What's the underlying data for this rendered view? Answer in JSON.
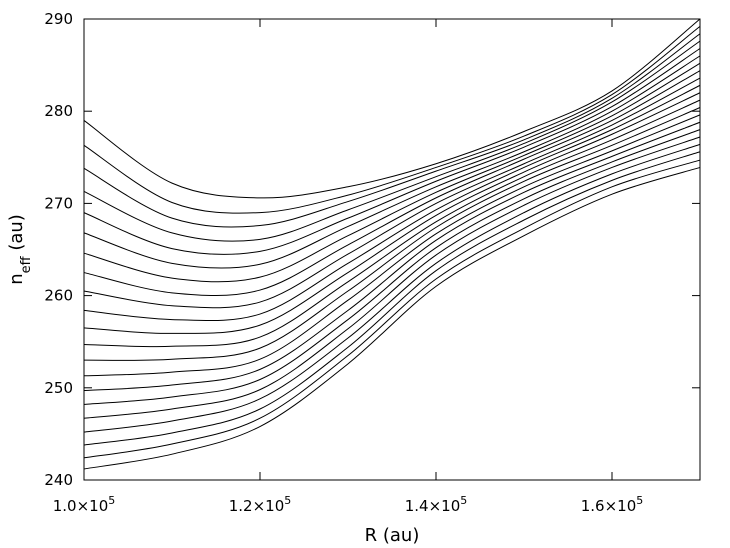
{
  "chart_data": {
    "type": "line",
    "title": "",
    "xlabel": "R (au)",
    "ylabel_main": "n",
    "ylabel_sub": "eff",
    "ylabel_unit": " (au)",
    "xlim": [
      100000,
      170000
    ],
    "ylim": [
      240,
      290
    ],
    "xticks": [
      {
        "value": 100000,
        "mantissa": "1.0",
        "base": "×10",
        "exp": "5"
      },
      {
        "value": 120000,
        "mantissa": "1.2",
        "base": "×10",
        "exp": "5"
      },
      {
        "value": 140000,
        "mantissa": "1.4",
        "base": "×10",
        "exp": "5"
      },
      {
        "value": 160000,
        "mantissa": "1.6",
        "base": "×10",
        "exp": "5"
      }
    ],
    "yticks": [
      {
        "value": 240,
        "label": "240"
      },
      {
        "value": 250,
        "label": "250"
      },
      {
        "value": 260,
        "label": "260"
      },
      {
        "value": 270,
        "label": "270"
      },
      {
        "value": 280,
        "label": "280"
      },
      {
        "value": 290,
        "label": "290"
      }
    ],
    "grid": false,
    "line_color": "#000000",
    "x": [
      100000,
      110000,
      120000,
      130000,
      140000,
      150000,
      160000,
      170000
    ],
    "series": [
      {
        "values": [
          279.0,
          272.2,
          270.6,
          271.8,
          274.3,
          277.8,
          282.2,
          290.0
        ]
      },
      {
        "values": [
          276.3,
          270.1,
          269.0,
          270.9,
          273.9,
          277.3,
          281.8,
          289.2
        ]
      },
      {
        "values": [
          273.8,
          268.4,
          267.6,
          270.2,
          273.5,
          276.9,
          281.4,
          288.4
        ]
      },
      {
        "values": [
          271.3,
          266.8,
          266.1,
          269.3,
          272.9,
          276.5,
          281.0,
          287.6
        ]
      },
      {
        "values": [
          269.0,
          265.1,
          264.8,
          268.4,
          272.4,
          276.1,
          280.5,
          286.8
        ]
      },
      {
        "values": [
          266.8,
          263.5,
          263.4,
          267.5,
          271.8,
          275.6,
          280.0,
          286.0
        ]
      },
      {
        "values": [
          264.6,
          261.9,
          262.0,
          266.5,
          271.2,
          275.2,
          279.5,
          285.2
        ]
      },
      {
        "values": [
          262.5,
          260.3,
          260.6,
          265.5,
          270.6,
          274.8,
          279.0,
          284.4
        ]
      },
      {
        "values": [
          260.5,
          258.9,
          259.3,
          264.5,
          270.0,
          274.3,
          278.5,
          283.6
        ]
      },
      {
        "values": [
          258.4,
          257.4,
          258.0,
          263.5,
          269.3,
          273.9,
          278.0,
          282.8
        ]
      },
      {
        "values": [
          256.5,
          255.9,
          256.8,
          262.5,
          268.7,
          273.4,
          277.5,
          282.0
        ]
      },
      {
        "values": [
          254.7,
          254.5,
          255.5,
          261.5,
          268.0,
          272.9,
          276.9,
          281.2
        ]
      },
      {
        "values": [
          253.0,
          253.1,
          254.3,
          260.5,
          267.4,
          272.4,
          276.3,
          280.4
        ]
      },
      {
        "values": [
          251.3,
          251.7,
          253.1,
          259.5,
          266.7,
          271.8,
          275.7,
          279.6
        ]
      },
      {
        "values": [
          249.7,
          250.3,
          252.0,
          258.4,
          266.0,
          271.2,
          275.1,
          278.8
        ]
      },
      {
        "values": [
          248.2,
          249.0,
          250.9,
          257.4,
          265.2,
          270.5,
          274.5,
          278.0
        ]
      },
      {
        "values": [
          246.7,
          247.7,
          249.8,
          256.4,
          264.4,
          269.8,
          273.9,
          277.2
        ]
      },
      {
        "values": [
          245.2,
          246.4,
          248.8,
          255.4,
          263.5,
          269.0,
          273.2,
          276.4
        ]
      },
      {
        "values": [
          243.8,
          245.1,
          247.7,
          254.4,
          262.7,
          268.2,
          272.5,
          275.6
        ]
      },
      {
        "values": [
          242.4,
          243.9,
          246.7,
          253.5,
          261.8,
          267.3,
          271.8,
          274.7
        ]
      },
      {
        "values": [
          241.2,
          242.8,
          245.8,
          252.6,
          261.0,
          266.5,
          271.0,
          273.9
        ]
      }
    ]
  }
}
